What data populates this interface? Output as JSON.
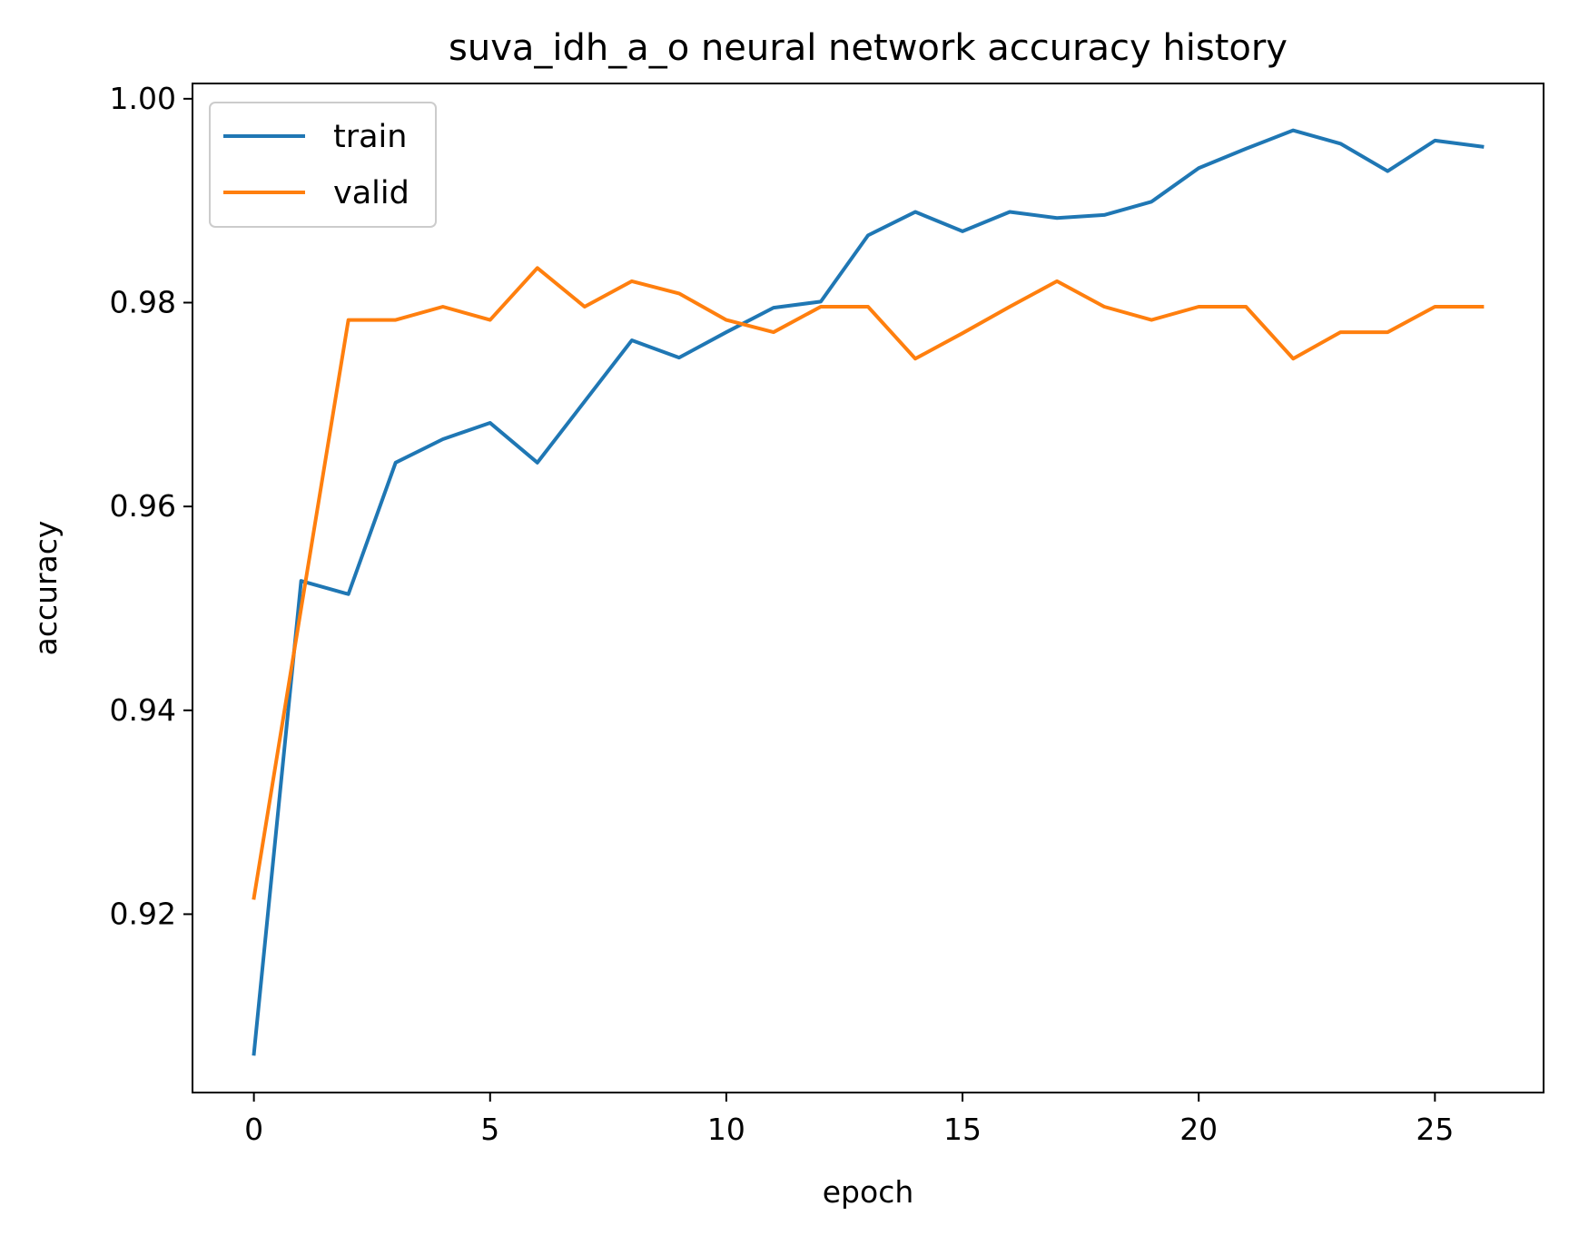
{
  "chart_data": {
    "type": "line",
    "title": "suva_idh_a_o neural network accuracy history",
    "xlabel": "epoch",
    "ylabel": "accuracy",
    "xlim": [
      -1.3,
      27.3
    ],
    "ylim": [
      0.9025,
      1.0015
    ],
    "xticks": [
      0,
      5,
      10,
      15,
      20,
      25
    ],
    "xtick_labels": [
      "0",
      "5",
      "10",
      "15",
      "20",
      "25"
    ],
    "yticks": [
      0.92,
      0.94,
      0.96,
      0.98,
      1.0
    ],
    "ytick_labels": [
      "0.92",
      "0.94",
      "0.96",
      "0.98",
      "1.00"
    ],
    "grid": false,
    "legend_position": "top-left",
    "x": [
      0,
      1,
      2,
      3,
      4,
      5,
      6,
      7,
      8,
      9,
      10,
      11,
      12,
      13,
      14,
      15,
      16,
      17,
      18,
      19,
      20,
      21,
      22,
      23,
      24,
      25,
      26
    ],
    "series": [
      {
        "name": "train",
        "color": "#1f77b4",
        "values": [
          0.9063,
          0.9527,
          0.9514,
          0.9643,
          0.9666,
          0.9682,
          0.9643,
          0.9703,
          0.9763,
          0.9746,
          0.9771,
          0.9795,
          0.9801,
          0.9866,
          0.9889,
          0.987,
          0.9889,
          0.9883,
          0.9886,
          0.9899,
          0.9932,
          0.9951,
          0.9969,
          0.9956,
          0.9929,
          0.9959,
          0.9953
        ]
      },
      {
        "name": "valid",
        "color": "#ff7f0e",
        "values": [
          0.9216,
          0.95,
          0.9783,
          0.9783,
          0.9796,
          0.9783,
          0.9834,
          0.9796,
          0.9821,
          0.9809,
          0.9783,
          0.9771,
          0.9796,
          0.9796,
          0.9745,
          0.977,
          0.9796,
          0.9821,
          0.9796,
          0.9783,
          0.9796,
          0.9796,
          0.9745,
          0.9771,
          0.9771,
          0.9796,
          0.9796
        ]
      }
    ]
  }
}
